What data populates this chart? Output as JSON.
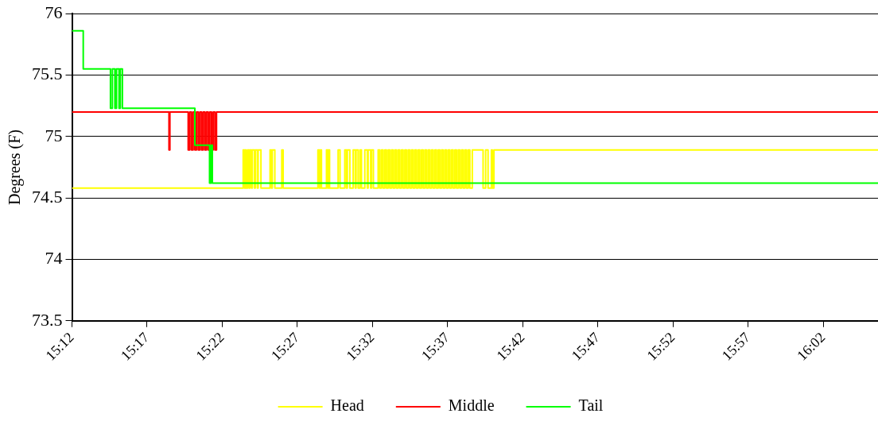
{
  "chart_data": {
    "type": "step",
    "ylabel": "Degrees (F)",
    "xlim": [
      15.2,
      16.094
    ],
    "xticks": [
      {
        "value": 15.2,
        "label": "15:12"
      },
      {
        "value": 15.2833,
        "label": "15:17"
      },
      {
        "value": 15.3667,
        "label": "15:22"
      },
      {
        "value": 15.45,
        "label": "15:27"
      },
      {
        "value": 15.5333,
        "label": "15:32"
      },
      {
        "value": 15.6167,
        "label": "15:37"
      },
      {
        "value": 15.7,
        "label": "15:42"
      },
      {
        "value": 15.7833,
        "label": "15:47"
      },
      {
        "value": 15.8667,
        "label": "15:52"
      },
      {
        "value": 15.95,
        "label": "15:57"
      },
      {
        "value": 16.0333,
        "label": "16:02"
      }
    ],
    "ylim": [
      73.5,
      76
    ],
    "yticks": [
      73.5,
      74,
      74.5,
      75,
      75.5,
      76
    ],
    "grid": "y",
    "legend": "bottom",
    "marker": "none",
    "line_style": "solid",
    "series": [
      {
        "name": "Head",
        "color": "#ffff00",
        "x": [
          15.2,
          15.3899,
          15.3913,
          15.3922,
          15.3931,
          15.3948,
          15.3964,
          15.3973,
          15.3991,
          15.4,
          15.4024,
          15.4033,
          15.4056,
          15.4065,
          15.4096,
          15.4197,
          15.4213,
          15.4222,
          15.425,
          15.4327,
          15.4342,
          15.4728,
          15.4744,
          15.4754,
          15.4767,
          15.4823,
          15.4837,
          15.4844,
          15.4857,
          15.4952,
          15.4973,
          15.5026,
          15.5045,
          15.5054,
          15.5082,
          15.5119,
          15.5142,
          15.5151,
          15.5174,
          15.5195,
          15.5211,
          15.5248,
          15.5276,
          15.5285,
          15.5313,
          15.5322,
          15.5343,
          15.5396,
          15.5414,
          15.5433,
          15.5451,
          15.547,
          15.5488,
          15.5507,
          15.5525,
          15.5544,
          15.5562,
          15.5581,
          15.5599,
          15.5618,
          15.5636,
          15.5655,
          15.5673,
          15.5692,
          15.571,
          15.5729,
          15.5747,
          15.5766,
          15.5784,
          15.5803,
          15.5821,
          15.584,
          15.5858,
          15.5877,
          15.5895,
          15.5914,
          15.5932,
          15.5951,
          15.5969,
          15.5988,
          15.6006,
          15.6025,
          15.6043,
          15.6062,
          15.608,
          15.6099,
          15.6117,
          15.6136,
          15.6154,
          15.6173,
          15.6191,
          15.621,
          15.6228,
          15.6247,
          15.6265,
          15.6284,
          15.6302,
          15.6321,
          15.6339,
          15.6358,
          15.6376,
          15.6395,
          15.6413,
          15.644,
          15.656,
          15.6588,
          15.6615,
          15.6652,
          15.6662,
          15.668,
          16.094
        ],
        "values": [
          74.58,
          74.89,
          74.58,
          74.89,
          74.58,
          74.89,
          74.58,
          74.89,
          74.58,
          74.89,
          74.58,
          74.89,
          74.58,
          74.89,
          74.58,
          74.89,
          74.58,
          74.89,
          74.58,
          74.89,
          74.58,
          74.89,
          74.58,
          74.89,
          74.58,
          74.89,
          74.58,
          74.89,
          74.58,
          74.89,
          74.58,
          74.89,
          74.58,
          74.89,
          74.58,
          74.89,
          74.58,
          74.89,
          74.58,
          74.89,
          74.58,
          74.89,
          74.58,
          74.89,
          74.58,
          74.89,
          74.58,
          74.89,
          74.58,
          74.89,
          74.58,
          74.89,
          74.58,
          74.89,
          74.58,
          74.89,
          74.58,
          74.89,
          74.58,
          74.89,
          74.58,
          74.89,
          74.58,
          74.89,
          74.58,
          74.89,
          74.58,
          74.89,
          74.58,
          74.89,
          74.58,
          74.89,
          74.58,
          74.89,
          74.58,
          74.89,
          74.58,
          74.89,
          74.58,
          74.89,
          74.58,
          74.89,
          74.58,
          74.89,
          74.58,
          74.89,
          74.58,
          74.89,
          74.58,
          74.89,
          74.58,
          74.89,
          74.58,
          74.89,
          74.58,
          74.89,
          74.58,
          74.89,
          74.58,
          74.89,
          74.58,
          74.89,
          74.58,
          74.89,
          74.58,
          74.89,
          74.58,
          74.89,
          74.58,
          74.89,
          74.89
        ]
      },
      {
        "name": "Middle",
        "color": "#ff0000",
        "x": [
          15.2,
          15.3076,
          15.3086,
          15.3289,
          15.3307,
          15.3326,
          15.3344,
          15.3363,
          15.3381,
          15.34,
          15.3418,
          15.3437,
          15.3455,
          15.3474,
          15.3492,
          15.3511,
          15.3529,
          15.3548,
          15.3566,
          15.3585,
          15.3603,
          16.094
        ],
        "values": [
          75.2,
          74.89,
          75.2,
          74.89,
          75.2,
          74.89,
          75.2,
          74.89,
          75.2,
          74.89,
          75.2,
          74.89,
          75.2,
          74.89,
          75.2,
          74.89,
          75.2,
          74.89,
          75.2,
          74.89,
          75.2,
          75.2
        ]
      },
      {
        "name": "Tail",
        "color": "#00ff00",
        "x": [
          15.2,
          15.2125,
          15.2427,
          15.2448,
          15.2476,
          15.2494,
          15.2522,
          15.2536,
          15.2559,
          15.3363,
          15.3526,
          15.3543,
          15.3557,
          16.094
        ],
        "values": [
          75.86,
          75.55,
          75.23,
          75.55,
          75.23,
          75.55,
          75.23,
          75.55,
          75.23,
          74.93,
          74.62,
          74.93,
          74.62,
          74.62
        ]
      }
    ]
  }
}
